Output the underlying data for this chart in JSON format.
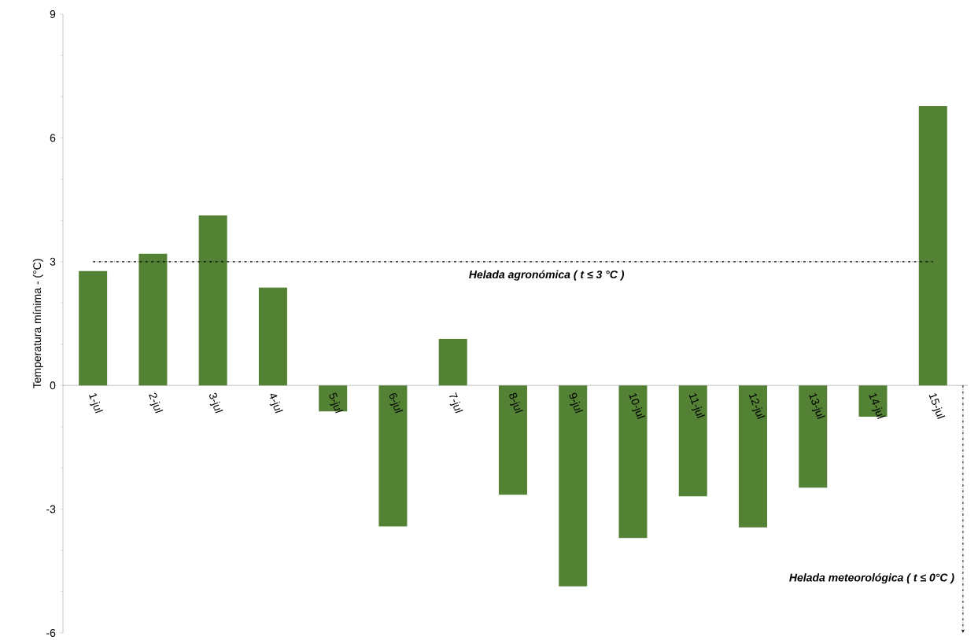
{
  "chart_data": {
    "type": "bar",
    "ylabel": "Temperatura mínima - (°C)",
    "categories": [
      "1-jul",
      "2-jul",
      "3-jul",
      "4-jul",
      "5-jul",
      "6-jul",
      "7-jul",
      "8-jul",
      "9-jul",
      "10-jul",
      "11-jul",
      "12-jul",
      "13-jul",
      "14-jul",
      "15-jul"
    ],
    "values": [
      2.77,
      3.19,
      4.12,
      2.37,
      -0.63,
      -3.42,
      1.13,
      -2.65,
      -4.87,
      -3.7,
      -2.69,
      -3.44,
      -2.48,
      -0.76,
      6.77
    ],
    "color": "#548235",
    "ylim": [
      -6,
      9
    ],
    "yticks": [
      -6,
      -3,
      0,
      3,
      6,
      9
    ],
    "ref_lines": [
      {
        "axis": "y",
        "value": 3,
        "label": "Helada agronómica ( t ≤ 3 °C )",
        "color": "#000000",
        "line_style": "dashdot"
      }
    ],
    "annotations": [
      "Helada meteorológica ( t ≤ 0°C )"
    ],
    "grid": false
  }
}
